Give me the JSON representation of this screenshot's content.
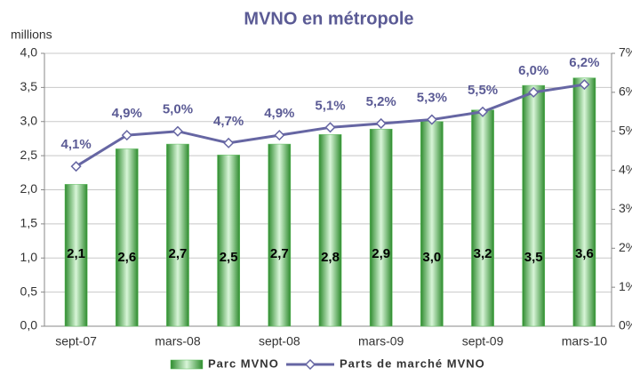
{
  "chart_data": {
    "type": "bar_line",
    "title": "MVNO en métropole",
    "y_label": "millions",
    "categories": [
      "sept-07",
      null,
      "mars-08",
      null,
      "sept-08",
      null,
      "mars-09",
      null,
      "sept-09",
      null,
      "mars-10"
    ],
    "series": [
      {
        "name": "Parc MVNO",
        "type": "bar",
        "color": "#5fbf5f",
        "values": [
          2.08,
          2.6,
          2.67,
          2.51,
          2.67,
          2.81,
          2.89,
          3.0,
          3.17,
          3.53,
          3.64
        ],
        "value_labels": [
          "2,1",
          "2,6",
          "2,7",
          "2,5",
          "2,7",
          "2,8",
          "2,9",
          "3,0",
          "3,2",
          "3,5",
          "3,6"
        ]
      },
      {
        "name": "Parts de marché MVNO",
        "type": "line",
        "axis": "y2",
        "color": "#6666a3",
        "values": [
          4.1,
          4.9,
          5.0,
          4.7,
          4.9,
          5.1,
          5.2,
          5.3,
          5.5,
          6.0,
          6.2
        ],
        "value_labels": [
          "4,1%",
          "4,9%",
          "5,0%",
          "4,7%",
          "4,9%",
          "5,1%",
          "5,2%",
          "5,3%",
          "5,5%",
          "6,0%",
          "6,2%"
        ]
      }
    ],
    "ylim": [
      0,
      4
    ],
    "yticks": [
      {
        "value": 0,
        "label": "0,0"
      },
      {
        "value": 0.5,
        "label": "0,5"
      },
      {
        "value": 1,
        "label": "1,0"
      },
      {
        "value": 1.5,
        "label": "1,5"
      },
      {
        "value": 2,
        "label": "2,0"
      },
      {
        "value": 2.5,
        "label": "2,5"
      },
      {
        "value": 3,
        "label": "3,0"
      },
      {
        "value": 3.5,
        "label": "3,5"
      },
      {
        "value": 4,
        "label": "4,0"
      }
    ],
    "y2lim": [
      0,
      7
    ],
    "y2ticks": [
      {
        "value": 0,
        "label": "0%"
      },
      {
        "value": 1,
        "label": "1%"
      },
      {
        "value": 2,
        "label": "2%"
      },
      {
        "value": 3,
        "label": "3%"
      },
      {
        "value": 4,
        "label": "4%"
      },
      {
        "value": 5,
        "label": "5%"
      },
      {
        "value": 6,
        "label": "6%"
      },
      {
        "value": 7,
        "label": "7%"
      }
    ],
    "grid": true,
    "legend": "bottom"
  }
}
